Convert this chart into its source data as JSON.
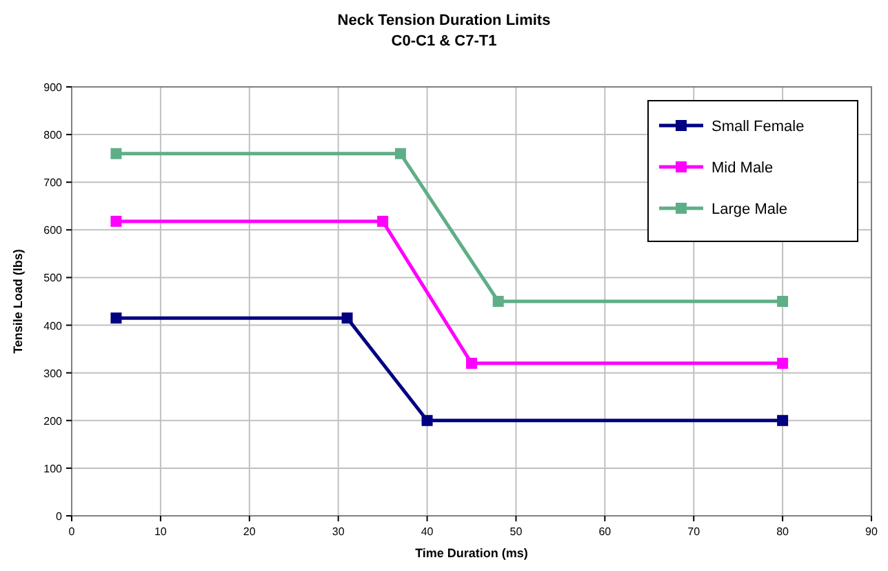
{
  "chart_data": {
    "type": "line",
    "title": "Neck Tension Duration Limits",
    "subtitle": "C0-C1 & C7-T1",
    "xlabel": "Time Duration (ms)",
    "ylabel": "Tensile Load (lbs)",
    "xlim": [
      0,
      90
    ],
    "xticks": [
      0,
      10,
      20,
      30,
      40,
      50,
      60,
      70,
      80,
      90
    ],
    "ylim": [
      0,
      900
    ],
    "yticks": [
      0,
      100,
      200,
      300,
      400,
      500,
      600,
      700,
      800,
      900
    ],
    "grid": true,
    "legend": "top right",
    "marker": "square",
    "line_style": "solid",
    "series": [
      {
        "name": "Small Female",
        "color": "#000080",
        "x": [
          5,
          31,
          40,
          80
        ],
        "values": [
          415,
          415,
          200,
          200
        ]
      },
      {
        "name": "Mid Male",
        "color": "#ff00ff",
        "x": [
          5,
          35,
          45,
          80
        ],
        "values": [
          618,
          618,
          320,
          320
        ]
      },
      {
        "name": "Large Male",
        "color": "#5fae88",
        "x": [
          5,
          37,
          48,
          80
        ],
        "values": [
          760,
          760,
          450,
          450
        ]
      }
    ]
  }
}
